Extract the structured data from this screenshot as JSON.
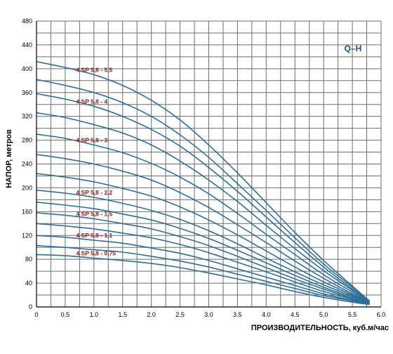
{
  "chart_data": {
    "type": "line",
    "legend": "Q–H",
    "xlabel": "ПРОИЗВОДИТЕЛЬНОСТЬ, куб.м/час",
    "ylabel": "НАПОР, метров",
    "xlim": [
      0,
      6.0
    ],
    "ylim": [
      0,
      480
    ],
    "x_ticks": [
      "0",
      "0.5",
      "1.0",
      "1.5",
      "2.0",
      "2.5",
      "3.0",
      "3.5",
      "4.0",
      "4.5",
      "5.0",
      "5.5",
      "6.0"
    ],
    "y_ticks": [
      "0",
      "40",
      "80",
      "120",
      "160",
      "200",
      "240",
      "280",
      "320",
      "360",
      "400",
      "440",
      "480"
    ],
    "grid": true,
    "colors": {
      "curve": "#2f6f96",
      "label": "#8b1a1a",
      "legend": "#1a4f8a",
      "grid": "#6e6e6e"
    },
    "x": [
      0,
      0.5,
      1.0,
      1.5,
      2.0,
      2.5,
      3.0,
      3.5,
      4.0,
      4.5,
      5.0,
      5.5,
      5.8
    ],
    "series": [
      {
        "name": "4 SP 5,8 - 5,5",
        "values": [
          412,
          402,
          390,
          372,
          347,
          314,
          272,
          225,
          175,
          125,
          78,
          35,
          10
        ]
      },
      {
        "name": "",
        "values": [
          382,
          372,
          360,
          343,
          320,
          289,
          251,
          207,
          162,
          116,
          72,
          33,
          10
        ]
      },
      {
        "name": "4 SP 5,8 - 4",
        "values": [
          358,
          349,
          337,
          320,
          298,
          270,
          234,
          194,
          151,
          108,
          67,
          30,
          10
        ]
      },
      {
        "name": "",
        "values": [
          326,
          318,
          306,
          292,
          272,
          245,
          213,
          177,
          137,
          98,
          61,
          28,
          9
        ]
      },
      {
        "name": "4 SP 5,8 - 3",
        "values": [
          290,
          283,
          272,
          259,
          241,
          218,
          190,
          157,
          122,
          88,
          54,
          25,
          9
        ]
      },
      {
        "name": "",
        "values": [
          256,
          249,
          240,
          228,
          213,
          192,
          167,
          138,
          108,
          77,
          48,
          22,
          8
        ]
      },
      {
        "name": "",
        "values": [
          224,
          218,
          210,
          199,
          186,
          168,
          146,
          121,
          94,
          67,
          42,
          20,
          8
        ]
      },
      {
        "name": "4 SP 5,8 - 2,2",
        "values": [
          196,
          191,
          184,
          174,
          162,
          147,
          128,
          106,
          82,
          59,
          37,
          18,
          7
        ]
      },
      {
        "name": "",
        "values": [
          176,
          171,
          165,
          156,
          146,
          132,
          115,
          95,
          74,
          53,
          33,
          16,
          7
        ]
      },
      {
        "name": "4 SP 5,8 - 1,5",
        "values": [
          158,
          154,
          148,
          140,
          131,
          118,
          103,
          85,
          66,
          47,
          30,
          14,
          6
        ]
      },
      {
        "name": "",
        "values": [
          140,
          136,
          131,
          124,
          116,
          105,
          91,
          75,
          59,
          42,
          26,
          13,
          6
        ]
      },
      {
        "name": "4 SP 5,8 - 1,1",
        "values": [
          120,
          117,
          112,
          107,
          99,
          90,
          78,
          64,
          50,
          36,
          22,
          11,
          5
        ]
      },
      {
        "name": "",
        "values": [
          103,
          100,
          96,
          92,
          85,
          77,
          67,
          55,
          43,
          31,
          19,
          10,
          5
        ]
      },
      {
        "name": "4 SP 5,8 - 0,75",
        "values": [
          88,
          86,
          82,
          78,
          73,
          66,
          57,
          47,
          37,
          26,
          16,
          8,
          4
        ]
      }
    ]
  }
}
